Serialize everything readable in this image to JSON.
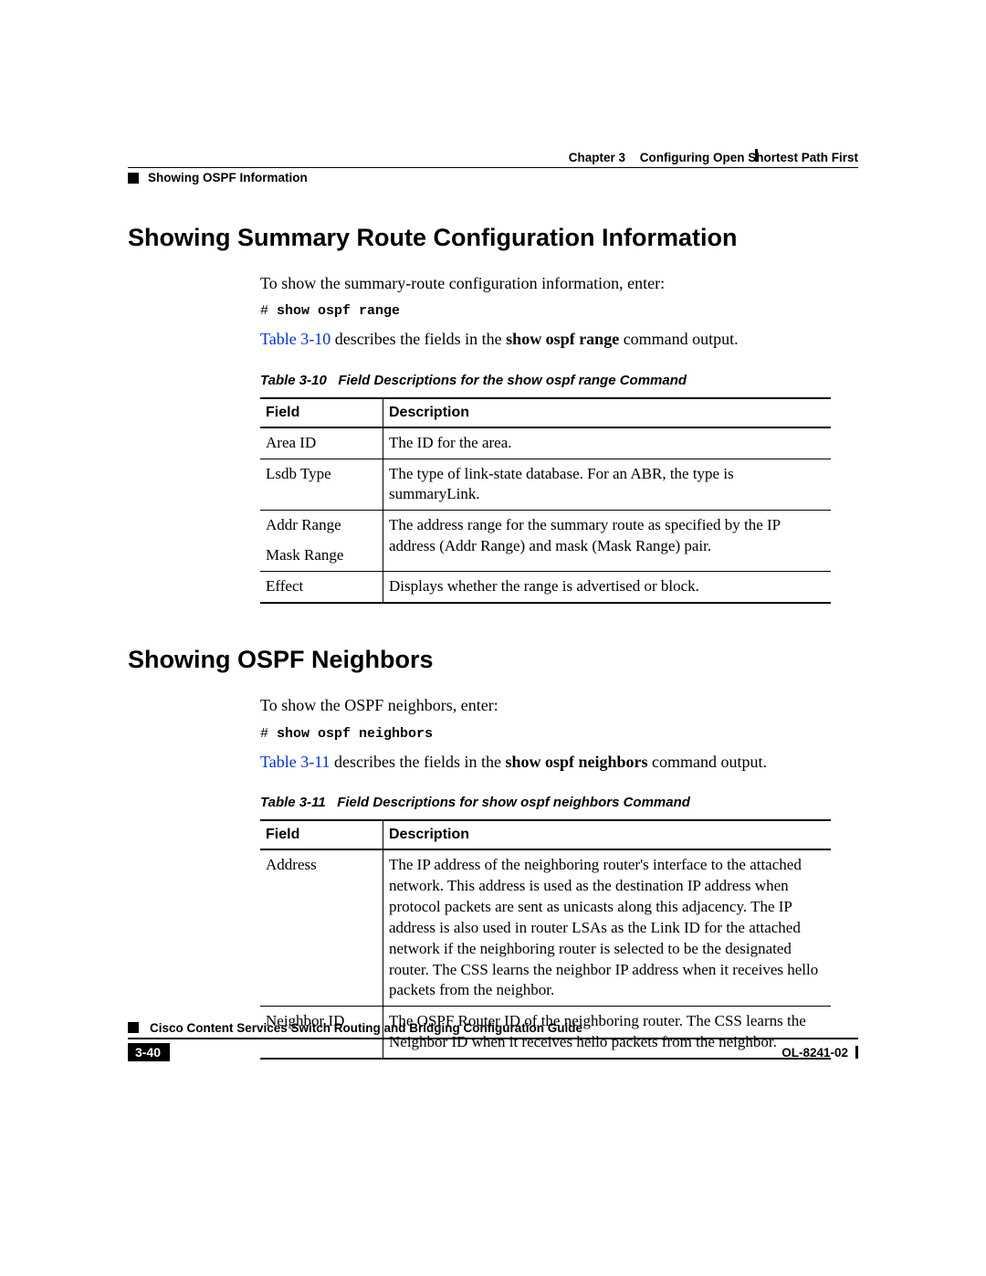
{
  "running_head": {
    "chapter_num": "Chapter 3",
    "chapter_title": "Configuring Open Shortest Path First",
    "section": "Showing OSPF Information"
  },
  "section1": {
    "heading": "Showing Summary Route Configuration Information",
    "intro": "To show the summary-route configuration information, enter:",
    "cmd_prefix": "# ",
    "cmd": "show ospf range",
    "ref_link": "Table 3-10",
    "ref_mid": " describes the fields in the ",
    "ref_bold": "show ospf range",
    "ref_tail": " command output.",
    "table_caption_num": "Table 3-10",
    "table_caption_title": "Field Descriptions for the show ospf range Command",
    "columns": {
      "field": "Field",
      "desc": "Description"
    },
    "rows": [
      {
        "field": "Area ID",
        "desc": "The ID for the area."
      },
      {
        "field": "Lsdb Type",
        "desc": "The type of link-state database. For an ABR, the type is summaryLink."
      },
      {
        "field": "Addr Range",
        "desc": "The address range for the summary route as specified by the IP address (Addr Range) and mask (Mask Range) pair."
      },
      {
        "field": "Mask Range",
        "desc": ""
      },
      {
        "field": "Effect",
        "desc": "Displays whether the range is advertised or block."
      }
    ]
  },
  "section2": {
    "heading": "Showing OSPF Neighbors",
    "intro": "To show the OSPF neighbors, enter:",
    "cmd_prefix": "# ",
    "cmd": "show ospf neighbors",
    "ref_link": "Table 3-11",
    "ref_mid": " describes the fields in the ",
    "ref_bold": "show ospf neighbors",
    "ref_tail": " command output.",
    "table_caption_num": "Table 3-11",
    "table_caption_title": "Field Descriptions for show ospf neighbors Command",
    "columns": {
      "field": "Field",
      "desc": "Description"
    },
    "rows": [
      {
        "field": "Address",
        "desc": "The IP address of the neighboring router's interface to the attached network. This address is used as the destination IP address when protocol packets are sent as unicasts along this adjacency. The IP address is also used in router LSAs as the Link ID for the attached network if the neighboring router is selected to be the designated router. The CSS learns the neighbor IP address when it receives hello packets from the neighbor."
      },
      {
        "field": "Neighbor ID",
        "desc": "The OSPF Router ID of the neighboring router. The CSS learns the Neighbor ID when it receives hello packets from the neighbor."
      }
    ]
  },
  "footer": {
    "doc_title": "Cisco Content Services Switch Routing and Bridging Configuration Guide",
    "page_num": "3-40",
    "doc_id": "OL-8241-02"
  },
  "colors": {
    "link": "#0033cc",
    "text": "#000000",
    "bg": "#ffffff"
  }
}
